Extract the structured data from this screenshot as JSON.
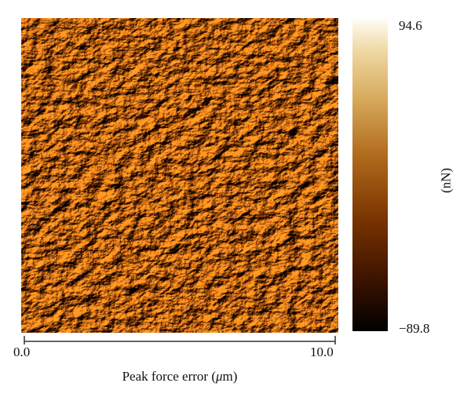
{
  "figure": {
    "colorbar": {
      "max_label": "94.6",
      "min_label": "−89.8",
      "unit_label": "(nN)",
      "max_value": 94.6,
      "min_value": -89.8,
      "colors": [
        "#000000",
        "#3a1200",
        "#7a3400",
        "#b06a1c",
        "#d7a85a",
        "#efd9a4",
        "#fffdf6"
      ]
    },
    "scan_axis": {
      "start_label": "0.0",
      "end_label": "10.0",
      "caption_prefix": "Peak force error (",
      "caption_unit_symbol": "μ",
      "caption_suffix": "m)"
    },
    "image": {
      "base_color": "#7a4a12",
      "highlight_color": "#f4ddb0",
      "shadow_color": "#2a1200"
    }
  }
}
